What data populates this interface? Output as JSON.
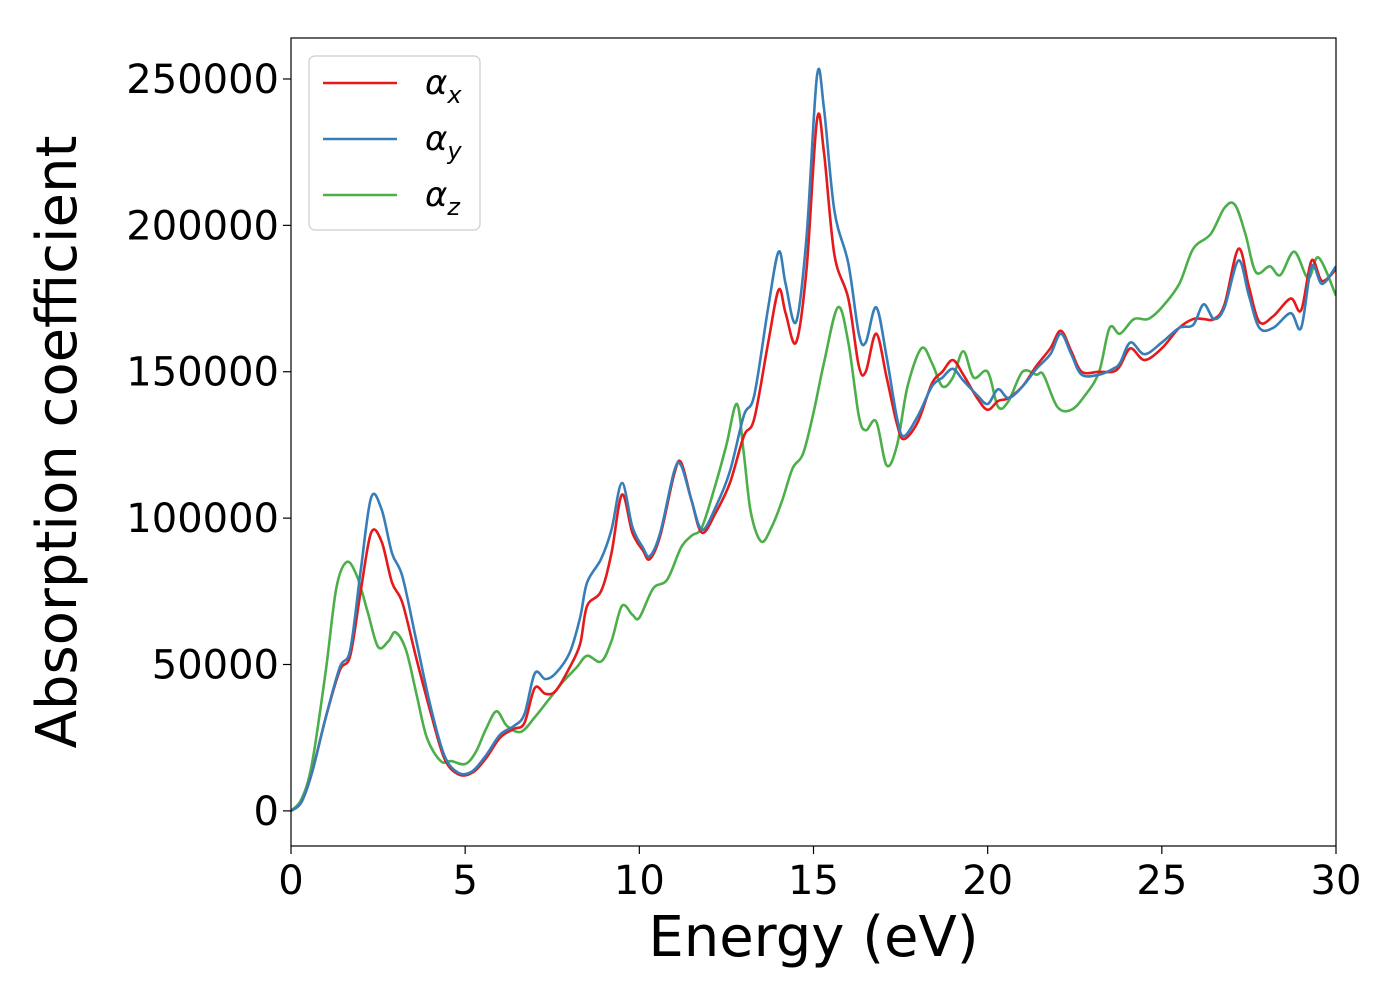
{
  "chart_data": {
    "type": "line",
    "title": "",
    "xlabel": "Energy (eV)",
    "ylabel": "Absorption coefficient",
    "xlim": [
      0,
      30
    ],
    "ylim": [
      -12000,
      264000
    ],
    "xticks": [
      0,
      5,
      10,
      15,
      20,
      25,
      30
    ],
    "yticks": [
      0,
      50000,
      100000,
      150000,
      200000,
      250000
    ],
    "grid": false,
    "legend_position": "top-left",
    "series": [
      {
        "name": "αx",
        "legend_symbol": "α",
        "legend_sub": "x",
        "color": "#e41a1c",
        "points": [
          [
            0,
            0
          ],
          [
            0.3,
            3000
          ],
          [
            0.6,
            13000
          ],
          [
            1.0,
            32000
          ],
          [
            1.4,
            48000
          ],
          [
            1.7,
            53000
          ],
          [
            2.0,
            75000
          ],
          [
            2.3,
            95000
          ],
          [
            2.6,
            92000
          ],
          [
            2.9,
            78000
          ],
          [
            3.2,
            71000
          ],
          [
            3.6,
            52000
          ],
          [
            4.0,
            34000
          ],
          [
            4.4,
            18000
          ],
          [
            4.8,
            12500
          ],
          [
            5.2,
            13000
          ],
          [
            5.6,
            18000
          ],
          [
            6.0,
            25000
          ],
          [
            6.4,
            28000
          ],
          [
            6.7,
            30000
          ],
          [
            7.0,
            42000
          ],
          [
            7.3,
            40000
          ],
          [
            7.6,
            41000
          ],
          [
            8.0,
            49000
          ],
          [
            8.3,
            57000
          ],
          [
            8.5,
            70000
          ],
          [
            8.9,
            75000
          ],
          [
            9.2,
            88000
          ],
          [
            9.5,
            108000
          ],
          [
            9.8,
            95000
          ],
          [
            10.1,
            89000
          ],
          [
            10.3,
            86000
          ],
          [
            10.6,
            94000
          ],
          [
            11.0,
            115000
          ],
          [
            11.2,
            119000
          ],
          [
            11.5,
            106000
          ],
          [
            11.8,
            95000
          ],
          [
            12.2,
            102000
          ],
          [
            12.6,
            112000
          ],
          [
            13.0,
            128000
          ],
          [
            13.3,
            134000
          ],
          [
            13.7,
            160000
          ],
          [
            14.0,
            178000
          ],
          [
            14.2,
            170000
          ],
          [
            14.5,
            160000
          ],
          [
            14.8,
            185000
          ],
          [
            15.1,
            236000
          ],
          [
            15.3,
            225000
          ],
          [
            15.6,
            190000
          ],
          [
            16.0,
            175000
          ],
          [
            16.3,
            152000
          ],
          [
            16.5,
            150000
          ],
          [
            16.8,
            163000
          ],
          [
            17.1,
            148000
          ],
          [
            17.4,
            132000
          ],
          [
            17.6,
            127000
          ],
          [
            18.0,
            133000
          ],
          [
            18.4,
            146000
          ],
          [
            18.7,
            150000
          ],
          [
            19.0,
            154000
          ],
          [
            19.3,
            149000
          ],
          [
            19.7,
            141000
          ],
          [
            20.0,
            137000
          ],
          [
            20.3,
            140000
          ],
          [
            20.6,
            141000
          ],
          [
            21.0,
            145000
          ],
          [
            21.4,
            152000
          ],
          [
            21.8,
            158000
          ],
          [
            22.1,
            164000
          ],
          [
            22.4,
            157000
          ],
          [
            22.7,
            150000
          ],
          [
            23.2,
            150000
          ],
          [
            23.6,
            150000
          ],
          [
            23.8,
            152000
          ],
          [
            24.1,
            158000
          ],
          [
            24.5,
            154000
          ],
          [
            25.0,
            158000
          ],
          [
            25.5,
            165000
          ],
          [
            25.9,
            168000
          ],
          [
            26.2,
            168000
          ],
          [
            26.5,
            168000
          ],
          [
            26.8,
            173000
          ],
          [
            27.2,
            192000
          ],
          [
            27.5,
            179000
          ],
          [
            27.8,
            167000
          ],
          [
            28.2,
            169000
          ],
          [
            28.7,
            175000
          ],
          [
            29.0,
            171000
          ],
          [
            29.3,
            188000
          ],
          [
            29.6,
            181000
          ],
          [
            30.0,
            185000
          ]
        ]
      },
      {
        "name": "αy",
        "legend_symbol": "α",
        "legend_sub": "y",
        "color": "#377eb8",
        "points": [
          [
            0,
            0
          ],
          [
            0.3,
            3000
          ],
          [
            0.6,
            13000
          ],
          [
            1.0,
            32000
          ],
          [
            1.4,
            49000
          ],
          [
            1.7,
            55000
          ],
          [
            2.0,
            82000
          ],
          [
            2.3,
            107000
          ],
          [
            2.6,
            103000
          ],
          [
            2.9,
            88000
          ],
          [
            3.2,
            80000
          ],
          [
            3.6,
            58000
          ],
          [
            4.0,
            36000
          ],
          [
            4.4,
            19000
          ],
          [
            4.8,
            13000
          ],
          [
            5.2,
            13500
          ],
          [
            5.6,
            19000
          ],
          [
            6.0,
            26000
          ],
          [
            6.4,
            29000
          ],
          [
            6.7,
            33000
          ],
          [
            7.0,
            47000
          ],
          [
            7.3,
            45000
          ],
          [
            7.6,
            47000
          ],
          [
            8.0,
            54000
          ],
          [
            8.3,
            66000
          ],
          [
            8.5,
            78000
          ],
          [
            8.9,
            86000
          ],
          [
            9.2,
            96000
          ],
          [
            9.5,
            112000
          ],
          [
            9.8,
            97000
          ],
          [
            10.1,
            90000
          ],
          [
            10.3,
            87000
          ],
          [
            10.6,
            95000
          ],
          [
            11.0,
            116000
          ],
          [
            11.2,
            118000
          ],
          [
            11.5,
            106000
          ],
          [
            11.8,
            96000
          ],
          [
            12.2,
            104000
          ],
          [
            12.6,
            116000
          ],
          [
            13.0,
            135000
          ],
          [
            13.3,
            142000
          ],
          [
            13.7,
            172000
          ],
          [
            14.0,
            191000
          ],
          [
            14.2,
            180000
          ],
          [
            14.5,
            167000
          ],
          [
            14.8,
            196000
          ],
          [
            15.1,
            251000
          ],
          [
            15.3,
            240000
          ],
          [
            15.6,
            205000
          ],
          [
            16.0,
            187000
          ],
          [
            16.3,
            163000
          ],
          [
            16.5,
            160000
          ],
          [
            16.8,
            172000
          ],
          [
            17.1,
            155000
          ],
          [
            17.4,
            134000
          ],
          [
            17.6,
            128000
          ],
          [
            18.0,
            135000
          ],
          [
            18.4,
            145000
          ],
          [
            18.7,
            148000
          ],
          [
            19.0,
            151000
          ],
          [
            19.3,
            147000
          ],
          [
            19.7,
            142000
          ],
          [
            20.0,
            139000
          ],
          [
            20.3,
            144000
          ],
          [
            20.6,
            141000
          ],
          [
            21.0,
            145000
          ],
          [
            21.4,
            151000
          ],
          [
            21.8,
            156000
          ],
          [
            22.1,
            163000
          ],
          [
            22.4,
            156000
          ],
          [
            22.7,
            149000
          ],
          [
            23.2,
            149000
          ],
          [
            23.6,
            151000
          ],
          [
            23.8,
            153000
          ],
          [
            24.1,
            160000
          ],
          [
            24.5,
            156000
          ],
          [
            25.0,
            160000
          ],
          [
            25.5,
            165000
          ],
          [
            25.9,
            166000
          ],
          [
            26.2,
            173000
          ],
          [
            26.5,
            168000
          ],
          [
            26.8,
            172000
          ],
          [
            27.2,
            188000
          ],
          [
            27.5,
            176000
          ],
          [
            27.8,
            165000
          ],
          [
            28.2,
            165000
          ],
          [
            28.7,
            170000
          ],
          [
            29.0,
            165000
          ],
          [
            29.3,
            186000
          ],
          [
            29.6,
            180000
          ],
          [
            30.0,
            186000
          ]
        ]
      },
      {
        "name": "αz",
        "legend_symbol": "α",
        "legend_sub": "z",
        "color": "#4daf4a",
        "points": [
          [
            0,
            0
          ],
          [
            0.3,
            4000
          ],
          [
            0.6,
            16000
          ],
          [
            1.0,
            48000
          ],
          [
            1.3,
            76000
          ],
          [
            1.6,
            85000
          ],
          [
            1.9,
            80000
          ],
          [
            2.2,
            68000
          ],
          [
            2.5,
            56000
          ],
          [
            2.8,
            58000
          ],
          [
            3.0,
            61000
          ],
          [
            3.3,
            55000
          ],
          [
            3.6,
            40000
          ],
          [
            3.9,
            25000
          ],
          [
            4.3,
            17000
          ],
          [
            4.6,
            17000
          ],
          [
            5.0,
            16000
          ],
          [
            5.3,
            20000
          ],
          [
            5.6,
            28000
          ],
          [
            5.9,
            34000
          ],
          [
            6.2,
            29000
          ],
          [
            6.6,
            27000
          ],
          [
            7.0,
            32000
          ],
          [
            7.4,
            38000
          ],
          [
            7.8,
            44000
          ],
          [
            8.2,
            49000
          ],
          [
            8.5,
            53000
          ],
          [
            8.9,
            51000
          ],
          [
            9.2,
            58000
          ],
          [
            9.5,
            70000
          ],
          [
            9.8,
            67000
          ],
          [
            10.0,
            66000
          ],
          [
            10.4,
            76000
          ],
          [
            10.8,
            79000
          ],
          [
            11.2,
            90000
          ],
          [
            11.5,
            94000
          ],
          [
            11.8,
            97000
          ],
          [
            12.2,
            112000
          ],
          [
            12.5,
            125000
          ],
          [
            12.8,
            139000
          ],
          [
            13.0,
            122000
          ],
          [
            13.2,
            102000
          ],
          [
            13.5,
            92000
          ],
          [
            13.8,
            97000
          ],
          [
            14.1,
            106000
          ],
          [
            14.4,
            117000
          ],
          [
            14.7,
            122000
          ],
          [
            15.0,
            136000
          ],
          [
            15.3,
            153000
          ],
          [
            15.7,
            172000
          ],
          [
            16.0,
            160000
          ],
          [
            16.3,
            135000
          ],
          [
            16.5,
            130000
          ],
          [
            16.8,
            133000
          ],
          [
            17.1,
            118000
          ],
          [
            17.4,
            125000
          ],
          [
            17.7,
            145000
          ],
          [
            18.1,
            158000
          ],
          [
            18.4,
            153000
          ],
          [
            18.7,
            145000
          ],
          [
            19.0,
            148000
          ],
          [
            19.3,
            157000
          ],
          [
            19.6,
            148000
          ],
          [
            20.0,
            150000
          ],
          [
            20.3,
            138000
          ],
          [
            20.6,
            140000
          ],
          [
            21.0,
            150000
          ],
          [
            21.4,
            149000
          ],
          [
            21.6,
            149000
          ],
          [
            22.0,
            138000
          ],
          [
            22.4,
            137000
          ],
          [
            22.8,
            142000
          ],
          [
            23.2,
            150000
          ],
          [
            23.5,
            165000
          ],
          [
            23.8,
            163000
          ],
          [
            24.2,
            168000
          ],
          [
            24.6,
            168000
          ],
          [
            25.0,
            172000
          ],
          [
            25.5,
            180000
          ],
          [
            25.9,
            192000
          ],
          [
            26.4,
            197000
          ],
          [
            26.8,
            206000
          ],
          [
            27.1,
            207000
          ],
          [
            27.4,
            197000
          ],
          [
            27.7,
            184000
          ],
          [
            28.1,
            186000
          ],
          [
            28.4,
            183000
          ],
          [
            28.8,
            191000
          ],
          [
            29.2,
            182000
          ],
          [
            29.5,
            189000
          ],
          [
            30.0,
            176000
          ]
        ]
      }
    ]
  }
}
